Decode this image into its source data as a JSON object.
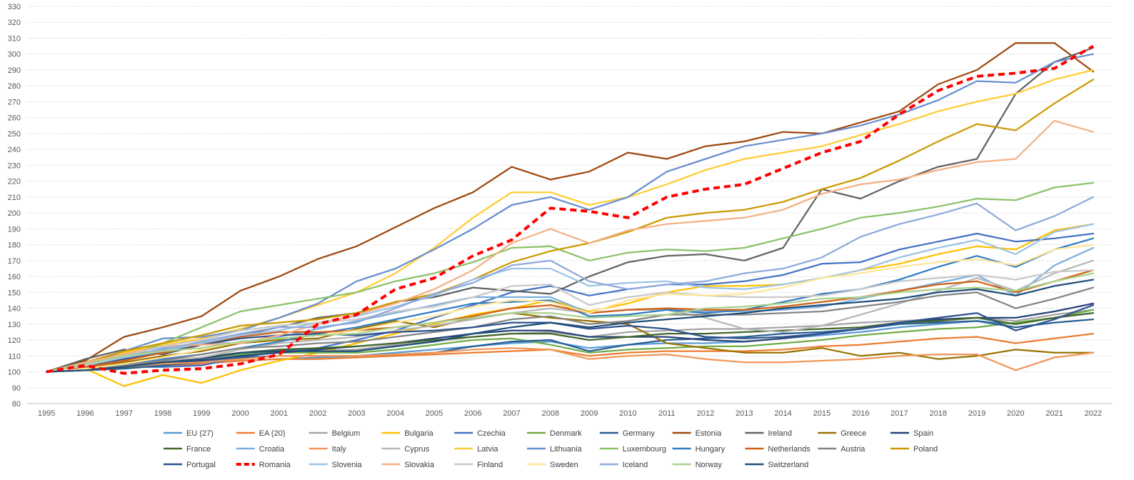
{
  "chart_data": {
    "type": "line",
    "title": "",
    "xlabel": "",
    "ylabel": "",
    "ylim": [
      80,
      330
    ],
    "ytick_step": 10,
    "grid": true,
    "legend_position": "bottom",
    "x": [
      "1995",
      "1996",
      "1997",
      "1998",
      "1999",
      "2000",
      "2001",
      "2002",
      "2003",
      "2004",
      "2005",
      "2006",
      "2007",
      "2008",
      "2009",
      "2010",
      "2011",
      "2012",
      "2013",
      "2014",
      "2015",
      "2016",
      "2017",
      "2018",
      "2019",
      "2020",
      "2021",
      "2022"
    ],
    "series": [
      {
        "name": "EU (27)",
        "color": "#5b9bd5",
        "values": [
          100,
          101,
          103,
          104,
          105,
          107,
          108,
          109,
          110,
          112,
          114,
          116,
          118,
          119,
          115,
          117,
          118,
          118,
          119,
          121,
          123,
          125,
          128,
          130,
          132,
          130,
          134,
          137
        ]
      },
      {
        "name": "EA (20)",
        "color": "#ed7d31",
        "values": [
          100,
          101,
          102,
          104,
          105,
          107,
          108,
          108,
          109,
          110,
          111,
          112,
          113,
          114,
          110,
          112,
          113,
          113,
          113,
          114,
          116,
          117,
          119,
          121,
          122,
          118,
          121,
          124
        ]
      },
      {
        "name": "Belgium",
        "color": "#a5a5a5",
        "values": [
          100,
          101,
          104,
          106,
          108,
          111,
          112,
          113,
          114,
          117,
          119,
          122,
          124,
          125,
          122,
          125,
          126,
          127,
          127,
          128,
          129,
          131,
          132,
          133,
          134,
          132,
          136,
          139
        ]
      },
      {
        "name": "Bulgaria",
        "color": "#ffc000",
        "values": [
          100,
          102,
          91,
          98,
          93,
          101,
          107,
          112,
          118,
          124,
          130,
          136,
          140,
          145,
          138,
          143,
          150,
          154,
          154,
          155,
          159,
          164,
          168,
          174,
          179,
          177,
          189,
          193
        ]
      },
      {
        "name": "Czechia",
        "color": "#4472c4",
        "values": [
          100,
          104,
          103,
          103,
          104,
          109,
          113,
          115,
          120,
          126,
          134,
          142,
          150,
          154,
          148,
          152,
          155,
          155,
          157,
          161,
          168,
          169,
          177,
          182,
          187,
          182,
          184,
          187
        ]
      },
      {
        "name": "Denmark",
        "color": "#70ad47",
        "values": [
          100,
          102,
          104,
          106,
          109,
          111,
          112,
          112,
          112,
          114,
          117,
          120,
          121,
          117,
          112,
          114,
          115,
          116,
          116,
          118,
          120,
          123,
          125,
          127,
          128,
          131,
          134,
          139
        ]
      },
      {
        "name": "Germany",
        "color": "#255e91",
        "values": [
          100,
          101,
          102,
          104,
          106,
          109,
          110,
          110,
          110,
          111,
          112,
          116,
          119,
          120,
          113,
          117,
          120,
          121,
          122,
          124,
          125,
          127,
          130,
          131,
          132,
          128,
          131,
          133
        ]
      },
      {
        "name": "Estonia",
        "color": "#9e480e",
        "values": [
          100,
          107,
          122,
          128,
          135,
          151,
          160,
          171,
          179,
          191,
          203,
          213,
          229,
          221,
          226,
          238,
          234,
          242,
          245,
          251,
          250,
          257,
          264,
          281,
          290,
          307,
          307,
          289
        ]
      },
      {
        "name": "Ireland",
        "color": "#636363",
        "values": [
          100,
          108,
          114,
          111,
          117,
          123,
          128,
          134,
          137,
          144,
          147,
          153,
          151,
          149,
          160,
          169,
          173,
          174,
          170,
          178,
          215,
          209,
          220,
          229,
          234,
          275,
          295,
          304
        ]
      },
      {
        "name": "Greece",
        "color": "#997300",
        "values": [
          100,
          102,
          106,
          110,
          113,
          118,
          120,
          121,
          127,
          132,
          128,
          134,
          137,
          134,
          132,
          130,
          118,
          115,
          112,
          112,
          115,
          110,
          112,
          108,
          110,
          114,
          112,
          112
        ]
      },
      {
        "name": "Spain",
        "color": "#264478",
        "values": [
          100,
          102,
          104,
          105,
          107,
          110,
          112,
          114,
          116,
          118,
          121,
          124,
          126,
          126,
          122,
          122,
          122,
          120,
          119,
          121,
          124,
          127,
          131,
          133,
          134,
          134,
          138,
          143
        ]
      },
      {
        "name": "France",
        "color": "#43682b",
        "values": [
          100,
          101,
          103,
          106,
          109,
          112,
          114,
          115,
          116,
          118,
          120,
          122,
          124,
          124,
          120,
          122,
          124,
          124,
          125,
          126,
          127,
          128,
          131,
          132,
          134,
          130,
          134,
          137
        ]
      },
      {
        "name": "Croatia",
        "color": "#7cafdd",
        "values": [
          100,
          106,
          112,
          115,
          118,
          118,
          122,
          127,
          132,
          137,
          142,
          147,
          147,
          147,
          137,
          139,
          139,
          138,
          138,
          139,
          141,
          146,
          151,
          156,
          161,
          148,
          167,
          178
        ]
      },
      {
        "name": "Italy",
        "color": "#f1975a",
        "values": [
          100,
          101,
          103,
          105,
          106,
          108,
          110,
          110,
          110,
          111,
          112,
          114,
          115,
          114,
          108,
          110,
          111,
          108,
          106,
          106,
          107,
          108,
          110,
          111,
          111,
          101,
          109,
          112
        ]
      },
      {
        "name": "Cyprus",
        "color": "#b7b7b7",
        "values": [
          100,
          102,
          104,
          107,
          109,
          114,
          118,
          120,
          122,
          126,
          129,
          133,
          137,
          140,
          137,
          139,
          139,
          134,
          127,
          125,
          129,
          136,
          143,
          151,
          159,
          151,
          162,
          170
        ]
      },
      {
        "name": "Latvia",
        "color": "#ffcd33",
        "values": [
          100,
          104,
          112,
          117,
          121,
          127,
          134,
          142,
          150,
          162,
          178,
          197,
          213,
          213,
          205,
          210,
          218,
          227,
          234,
          238,
          242,
          249,
          256,
          264,
          270,
          275,
          284,
          290
        ]
      },
      {
        "name": "Lithuania",
        "color": "#698ed0",
        "values": [
          100,
          105,
          113,
          121,
          122,
          126,
          134,
          143,
          157,
          165,
          177,
          190,
          205,
          210,
          202,
          210,
          226,
          234,
          242,
          246,
          250,
          255,
          262,
          271,
          283,
          282,
          295,
          300
        ]
      },
      {
        "name": "Luxembourg",
        "color": "#8cc168",
        "values": [
          100,
          103,
          109,
          118,
          128,
          138,
          142,
          146,
          150,
          157,
          162,
          169,
          178,
          179,
          170,
          175,
          177,
          176,
          178,
          184,
          190,
          197,
          200,
          204,
          209,
          208,
          216,
          219
        ]
      },
      {
        "name": "Hungary",
        "color": "#327dc2",
        "values": [
          100,
          101,
          104,
          108,
          111,
          115,
          119,
          124,
          128,
          133,
          138,
          143,
          144,
          145,
          135,
          136,
          139,
          137,
          139,
          144,
          149,
          152,
          158,
          166,
          173,
          166,
          177,
          184
        ]
      },
      {
        "name": "Netherlands",
        "color": "#d26012",
        "values": [
          100,
          103,
          107,
          112,
          117,
          122,
          125,
          125,
          126,
          128,
          131,
          135,
          140,
          142,
          137,
          139,
          140,
          139,
          139,
          141,
          144,
          147,
          151,
          155,
          157,
          150,
          157,
          164
        ]
      },
      {
        "name": "Austria",
        "color": "#848484",
        "values": [
          100,
          102,
          104,
          107,
          111,
          115,
          116,
          118,
          119,
          122,
          125,
          128,
          133,
          135,
          130,
          132,
          136,
          136,
          136,
          137,
          138,
          141,
          144,
          148,
          150,
          140,
          146,
          153
        ]
      },
      {
        "name": "Poland",
        "color": "#cc9a00",
        "values": [
          100,
          106,
          113,
          118,
          123,
          129,
          131,
          133,
          137,
          144,
          149,
          158,
          169,
          176,
          181,
          188,
          197,
          200,
          202,
          207,
          215,
          222,
          233,
          245,
          256,
          252,
          269,
          284
        ]
      },
      {
        "name": "Portugal",
        "color": "#2f528f",
        "values": [
          100,
          104,
          108,
          113,
          117,
          121,
          123,
          124,
          123,
          125,
          126,
          128,
          131,
          131,
          127,
          129,
          127,
          122,
          121,
          122,
          124,
          127,
          131,
          134,
          137,
          126,
          133,
          142
        ]
      },
      {
        "name": "Romania",
        "color": "#ff0000",
        "dashed": true,
        "values": [
          100,
          104,
          99,
          101,
          102,
          105,
          111,
          130,
          136,
          152,
          159,
          173,
          183,
          203,
          201,
          197,
          210,
          215,
          218,
          228,
          238,
          245,
          262,
          277,
          286,
          288,
          291,
          305
        ]
      },
      {
        "name": "Slovenia",
        "color": "#9dc3e6",
        "values": [
          100,
          104,
          109,
          113,
          118,
          123,
          126,
          131,
          135,
          141,
          148,
          158,
          165,
          165,
          154,
          156,
          157,
          153,
          152,
          155,
          159,
          164,
          172,
          178,
          183,
          174,
          188,
          193
        ]
      },
      {
        "name": "Slovakia",
        "color": "#f4b183",
        "values": [
          100,
          106,
          111,
          116,
          117,
          118,
          123,
          130,
          136,
          143,
          152,
          164,
          181,
          190,
          181,
          189,
          193,
          195,
          197,
          202,
          212,
          218,
          221,
          227,
          232,
          234,
          258,
          251
        ]
      },
      {
        "name": "Finland",
        "color": "#c9c9c9",
        "values": [
          100,
          104,
          110,
          116,
          120,
          126,
          129,
          131,
          133,
          138,
          141,
          147,
          154,
          155,
          142,
          147,
          150,
          148,
          147,
          147,
          148,
          152,
          157,
          159,
          161,
          158,
          163,
          164
        ]
      },
      {
        "name": "Sweden",
        "color": "#ffe699",
        "values": [
          100,
          102,
          105,
          109,
          114,
          119,
          121,
          123,
          126,
          131,
          135,
          141,
          145,
          144,
          137,
          145,
          149,
          148,
          149,
          153,
          159,
          162,
          166,
          169,
          171,
          167,
          177,
          180
        ]
      },
      {
        "name": "Iceland",
        "color": "#8faadc",
        "values": [
          100,
          105,
          110,
          114,
          119,
          124,
          128,
          128,
          131,
          140,
          149,
          156,
          167,
          170,
          157,
          152,
          155,
          157,
          162,
          165,
          172,
          185,
          193,
          199,
          206,
          189,
          198,
          210
        ]
      },
      {
        "name": "Norway",
        "color": "#a9d18e",
        "values": [
          100,
          105,
          110,
          113,
          115,
          119,
          121,
          123,
          124,
          128,
          131,
          134,
          137,
          137,
          134,
          135,
          136,
          140,
          141,
          143,
          146,
          147,
          150,
          152,
          153,
          151,
          157,
          162
        ]
      },
      {
        "name": "Switzerland",
        "color": "#1f4e79",
        "values": [
          100,
          101,
          103,
          106,
          108,
          112,
          113,
          113,
          113,
          116,
          119,
          124,
          128,
          131,
          128,
          131,
          133,
          135,
          137,
          140,
          142,
          144,
          146,
          150,
          152,
          148,
          154,
          158
        ]
      }
    ]
  }
}
